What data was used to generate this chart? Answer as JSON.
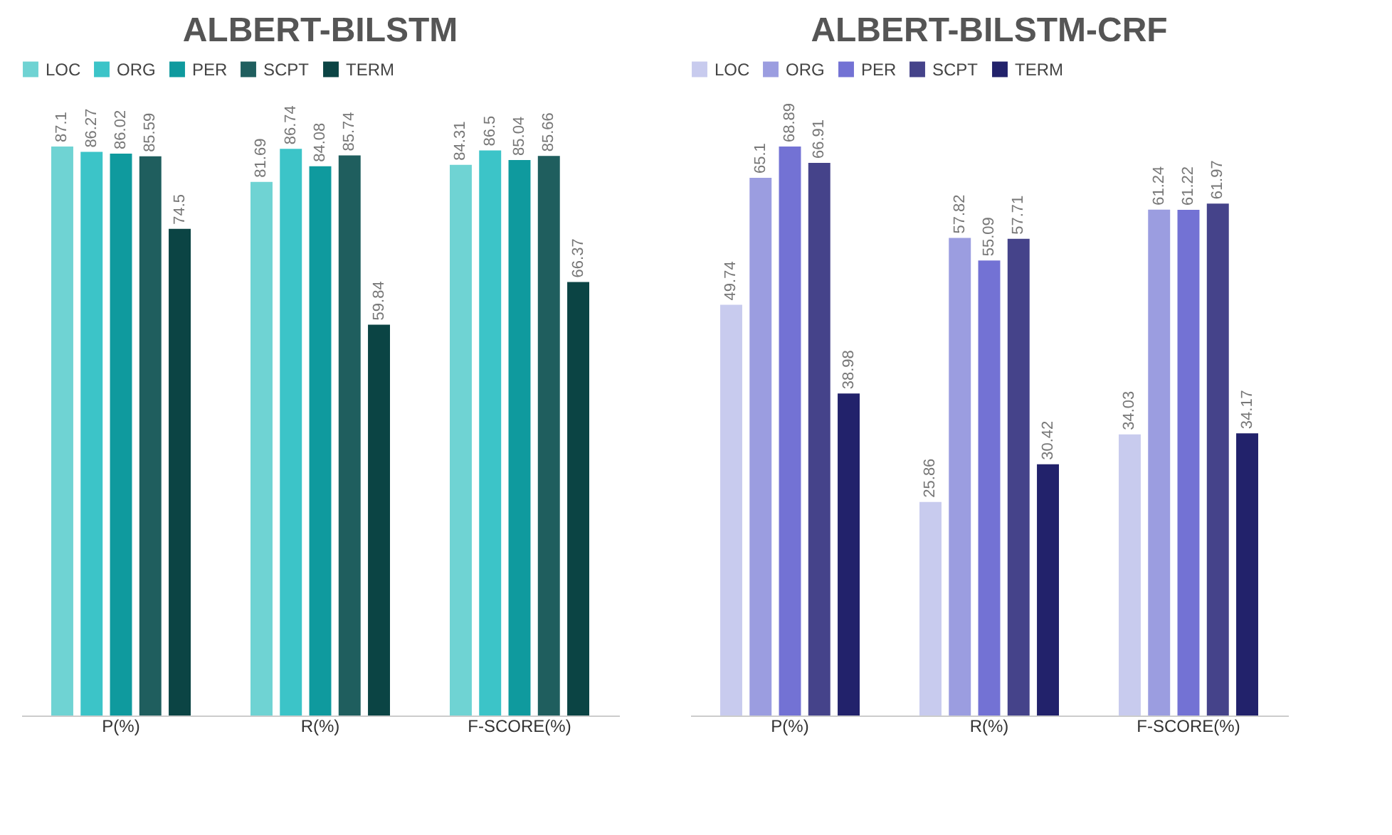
{
  "chart_data": [
    {
      "type": "bar",
      "title": "ALBERT-BILSTM",
      "categories": [
        "P(%)",
        "R(%)",
        "F-SCORE(%)"
      ],
      "tick_labels": "x",
      "data_labels": true,
      "legend": "top",
      "grid": false,
      "series": [
        {
          "name": "LOC",
          "color": "#6fd3d3",
          "values": [
            87.1,
            81.69,
            84.31
          ]
        },
        {
          "name": "ORG",
          "color": "#3cc4c8",
          "values": [
            86.27,
            86.74,
            86.5
          ]
        },
        {
          "name": "PER",
          "color": "#0f9a9e",
          "values": [
            86.02,
            84.08,
            85.04
          ]
        },
        {
          "name": "SCPT",
          "color": "#1f5e5e",
          "values": [
            85.59,
            85.74,
            85.66
          ]
        },
        {
          "name": "TERM",
          "color": "#0b4444",
          "values": [
            74.5,
            59.84,
            66.37
          ]
        }
      ]
    },
    {
      "type": "bar",
      "title": "ALBERT-BILSTM-CRF",
      "categories": [
        "P(%)",
        "R(%)",
        "F-SCORE(%)"
      ],
      "tick_labels": "x",
      "data_labels": true,
      "legend": "top",
      "grid": false,
      "series": [
        {
          "name": "LOC",
          "color": "#c8cbee",
          "values": [
            49.74,
            25.86,
            34.03
          ]
        },
        {
          "name": "ORG",
          "color": "#9b9de0",
          "values": [
            65.1,
            57.82,
            61.24
          ]
        },
        {
          "name": "PER",
          "color": "#7372d4",
          "values": [
            68.89,
            55.09,
            61.22
          ]
        },
        {
          "name": "SCPT",
          "color": "#45438a",
          "values": [
            66.91,
            57.71,
            61.97
          ]
        },
        {
          "name": "TERM",
          "color": "#22226b",
          "values": [
            38.98,
            30.42,
            34.17
          ]
        }
      ]
    }
  ]
}
